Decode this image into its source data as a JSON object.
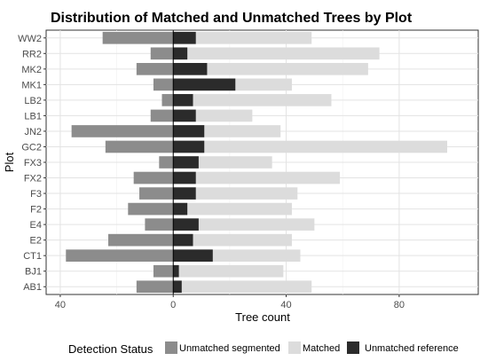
{
  "chart_data": {
    "type": "bar",
    "orientation": "horizontal",
    "stacked": true,
    "title": "Distribution of Matched and Unmatched Trees by Plot",
    "xlabel": "Tree count",
    "ylabel": "Plot",
    "xlim": [
      -45,
      108
    ],
    "xticks": [
      -40,
      0,
      40,
      80
    ],
    "xtick_labels": [
      "40",
      "0",
      "40",
      "80"
    ],
    "grid": true,
    "legend_position": "bottom",
    "legend_title": "Detection Status",
    "categories": [
      "WW2",
      "RR2",
      "MK2",
      "MK1",
      "LB2",
      "LB1",
      "JN2",
      "GC2",
      "FX3",
      "FX2",
      "F3",
      "F2",
      "E4",
      "E2",
      "CT1",
      "BJ1",
      "AB1"
    ],
    "series": [
      {
        "name": "Unmatched segmented",
        "color": "#8c8c8c",
        "values": [
          -25,
          -8,
          -13,
          -7,
          -4,
          -8,
          -36,
          -24,
          -5,
          -14,
          -12,
          -16,
          -10,
          -23,
          -38,
          -7,
          -13
        ]
      },
      {
        "name": "Matched",
        "color": "#dcdcdc",
        "values": [
          49,
          73,
          69,
          42,
          56,
          28,
          38,
          97,
          35,
          59,
          44,
          42,
          50,
          42,
          45,
          39,
          49
        ]
      },
      {
        "name": "Unmatched reference",
        "color": "#2b2b2b",
        "values": [
          8,
          5,
          12,
          22,
          7,
          8,
          11,
          11,
          9,
          8,
          8,
          5,
          9,
          7,
          14,
          2,
          3
        ]
      }
    ]
  }
}
